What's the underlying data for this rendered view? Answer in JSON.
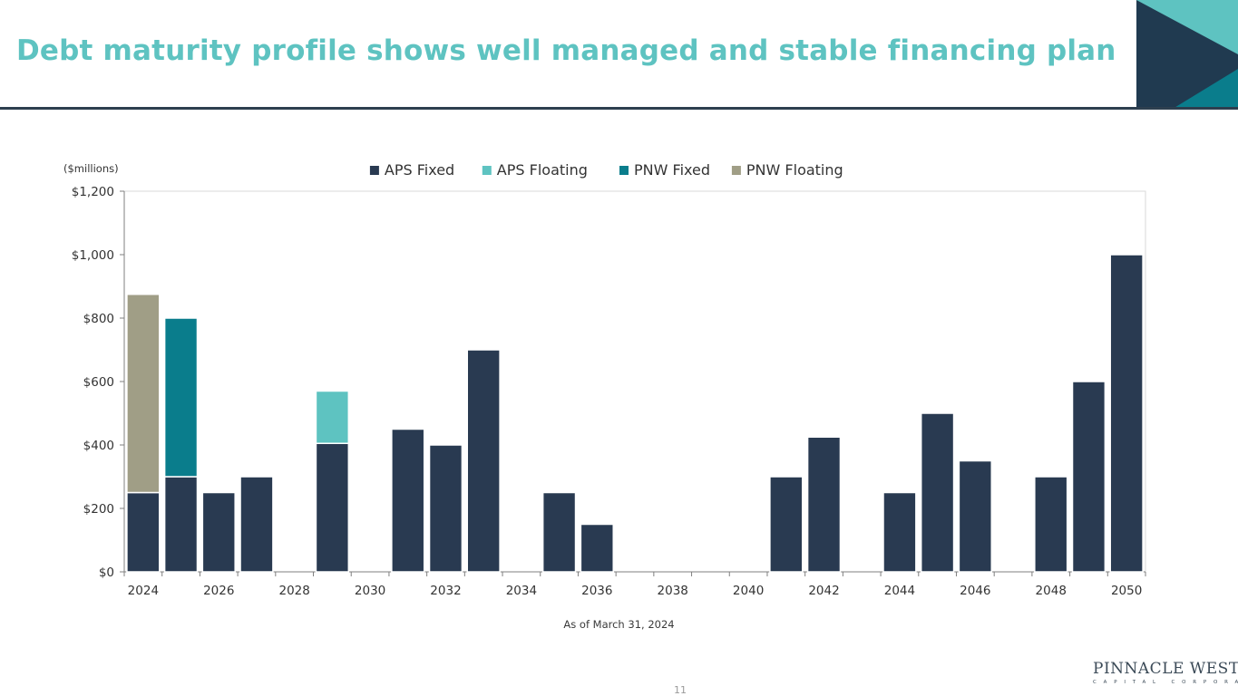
{
  "slide": {
    "title": "Debt maturity profile shows well managed and stable financing plan",
    "footnote": "As of March 31, 2024",
    "page_number": "11",
    "logo_main": "PINNACLE WEST",
    "logo_sub": "CAPITAL CORPORATION"
  },
  "colors": {
    "title": "#5ec3c1",
    "header_rule": "#2d3f4f",
    "corner_dark": "#203a50",
    "corner_teal": "#5ec3c1",
    "corner_deep": "#0a7d8c"
  },
  "chart_data": {
    "type": "bar",
    "stacked": true,
    "unit_label": "($millions)",
    "categories": [
      "2024",
      "2025",
      "2026",
      "2027",
      "2028",
      "2029",
      "2030",
      "2031",
      "2032",
      "2033",
      "2034",
      "2035",
      "2036",
      "2037",
      "2038",
      "2039",
      "2040",
      "2041",
      "2042",
      "2043",
      "2044",
      "2045",
      "2046",
      "2047",
      "2048",
      "2049",
      "2050"
    ],
    "tick_labels": [
      "2024",
      "2026",
      "2028",
      "2030",
      "2032",
      "2034",
      "2036",
      "2038",
      "2040",
      "2042",
      "2044",
      "2046",
      "2048",
      "2050"
    ],
    "y_ticks": [
      "$0",
      "$200",
      "$400",
      "$600",
      "$800",
      "$1,000",
      "$1,200"
    ],
    "ylim": [
      0,
      1200
    ],
    "legend_position": "top-center",
    "series": [
      {
        "name": "APS Fixed",
        "color": "#293a51",
        "values": [
          250,
          300,
          250,
          300,
          0,
          405,
          0,
          450,
          400,
          700,
          0,
          250,
          150,
          0,
          0,
          0,
          0,
          300,
          425,
          0,
          250,
          500,
          350,
          0,
          300,
          600,
          1000
        ]
      },
      {
        "name": "APS Floating",
        "color": "#5ec3c1",
        "values": [
          0,
          0,
          0,
          0,
          0,
          165,
          0,
          0,
          0,
          0,
          0,
          0,
          0,
          0,
          0,
          0,
          0,
          0,
          0,
          0,
          0,
          0,
          0,
          0,
          0,
          0,
          0
        ]
      },
      {
        "name": "PNW Fixed",
        "color": "#0a7d8c",
        "values": [
          0,
          500,
          0,
          0,
          0,
          0,
          0,
          0,
          0,
          0,
          0,
          0,
          0,
          0,
          0,
          0,
          0,
          0,
          0,
          0,
          0,
          0,
          0,
          0,
          0,
          0,
          0
        ]
      },
      {
        "name": "PNW Floating",
        "color": "#a09e86",
        "values": [
          625,
          0,
          0,
          0,
          0,
          0,
          0,
          0,
          0,
          0,
          0,
          0,
          0,
          0,
          0,
          0,
          0,
          0,
          0,
          0,
          0,
          0,
          0,
          0,
          0,
          0,
          0
        ]
      }
    ]
  }
}
